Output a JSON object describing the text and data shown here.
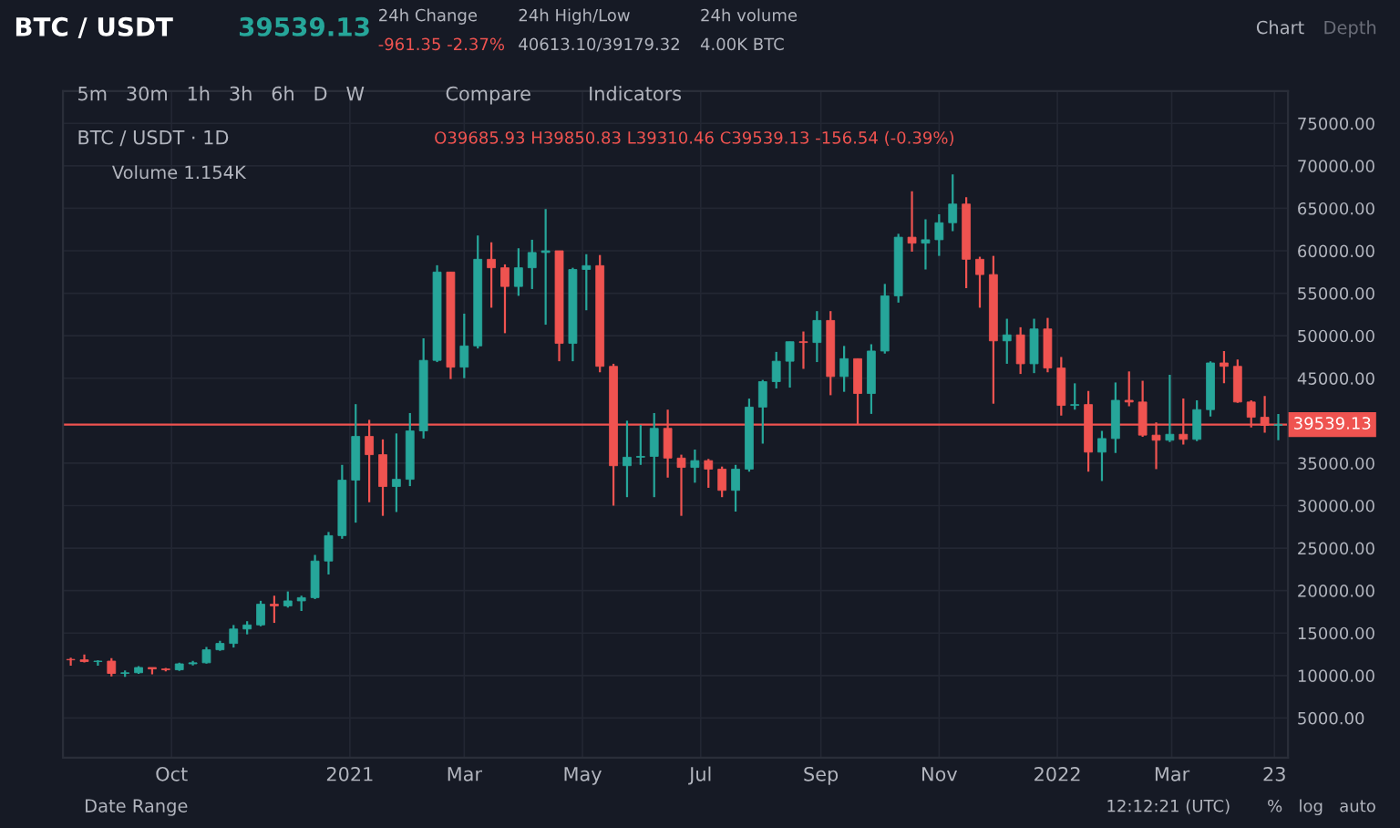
{
  "chart_data": {
    "type": "candlestick",
    "title": "BTC / USDT",
    "subtitle": "39539.13",
    "annotations": [
      "24h Change",
      "-961.35 -2.37%",
      "24h High/Low",
      "40613.10/39179.32",
      "24h volume",
      "4.00K BTC",
      "Chart",
      "Depth",
      "5m   30m   1h   3h   6h   D   W",
      "Compare",
      "Indicators",
      "BTC / USDT · 1D",
      "O39685.93 H39850.83 L39310.46 C39539.13 -156.54 (-0.39%)",
      "Volume 1.154K",
      "Date Range",
      "12:12:21 (UTC)",
      "%   log   auto"
    ],
    "x": [
      "2020-08-10",
      "2020-08-17",
      "2020-08-24",
      "2020-08-31",
      "2020-09-07",
      "2020-09-14",
      "2020-09-21",
      "2020-09-28",
      "2020-10-05",
      "2020-10-12",
      "2020-10-19",
      "2020-10-26",
      "2020-11-02",
      "2020-11-09",
      "2020-11-16",
      "2020-11-23",
      "2020-11-30",
      "2020-12-07",
      "2020-12-14",
      "2020-12-21",
      "2020-12-28",
      "2021-01-04",
      "2021-01-11",
      "2021-01-18",
      "2021-01-25",
      "2021-02-01",
      "2021-02-08",
      "2021-02-15",
      "2021-02-22",
      "2021-03-01",
      "2021-03-08",
      "2021-03-15",
      "2021-03-22",
      "2021-03-29",
      "2021-04-05",
      "2021-04-12",
      "2021-04-19",
      "2021-04-26",
      "2021-05-03",
      "2021-05-10",
      "2021-05-17",
      "2021-05-24",
      "2021-05-31",
      "2021-06-07",
      "2021-06-14",
      "2021-06-21",
      "2021-06-28",
      "2021-07-05",
      "2021-07-12",
      "2021-07-19",
      "2021-07-26",
      "2021-08-02",
      "2021-08-09",
      "2021-08-16",
      "2021-08-23",
      "2021-08-30",
      "2021-09-06",
      "2021-09-13",
      "2021-09-20",
      "2021-09-27",
      "2021-10-04",
      "2021-10-11",
      "2021-10-18",
      "2021-10-25",
      "2021-11-01",
      "2021-11-08",
      "2021-11-15",
      "2021-11-22",
      "2021-11-29",
      "2021-12-06",
      "2021-12-13",
      "2021-12-20",
      "2021-12-27",
      "2022-01-03",
      "2022-01-10",
      "2022-01-17",
      "2022-01-24",
      "2022-01-31",
      "2022-02-07",
      "2022-02-14",
      "2022-02-21",
      "2022-02-28",
      "2022-03-07",
      "2022-03-14",
      "2022-03-21",
      "2022-03-28",
      "2022-04-04",
      "2022-04-11",
      "2022-04-18",
      "2022-04-25"
    ],
    "ohlc": [
      [
        11900,
        12100,
        11150,
        11850
      ],
      [
        11850,
        12470,
        11550,
        11650
      ],
      [
        11650,
        11800,
        11150,
        11700
      ],
      [
        11700,
        12050,
        9900,
        10250
      ],
      [
        10250,
        10600,
        9850,
        10330
      ],
      [
        10330,
        11100,
        10200,
        10950
      ],
      [
        10950,
        10950,
        10140,
        10780
      ],
      [
        10780,
        10900,
        10500,
        10680
      ],
      [
        10680,
        11500,
        10550,
        11380
      ],
      [
        11380,
        11720,
        11200,
        11500
      ],
      [
        11500,
        13350,
        11400,
        13030
      ],
      [
        13030,
        14100,
        12900,
        13780
      ],
      [
        13780,
        15950,
        13300,
        15480
      ],
      [
        15480,
        16400,
        14850,
        15960
      ],
      [
        15960,
        18800,
        15800,
        18400
      ],
      [
        18400,
        19400,
        16200,
        18200
      ],
      [
        18200,
        19900,
        18000,
        18790
      ],
      [
        18790,
        19400,
        17600,
        19170
      ],
      [
        19170,
        24200,
        19000,
        23480
      ],
      [
        23480,
        26900,
        21900,
        26470
      ],
      [
        26470,
        34800,
        26100,
        33000
      ],
      [
        33000,
        41950,
        28000,
        38150
      ],
      [
        38150,
        40100,
        30400,
        36000
      ],
      [
        36000,
        37800,
        28800,
        32250
      ],
      [
        32250,
        38500,
        29250,
        33100
      ],
      [
        33100,
        40900,
        32300,
        38800
      ],
      [
        38800,
        49700,
        37900,
        47100
      ],
      [
        47100,
        58300,
        46900,
        57500
      ],
      [
        57500,
        57500,
        44900,
        46300
      ],
      [
        46300,
        52600,
        45000,
        48800
      ],
      [
        48800,
        61800,
        48500,
        59000
      ],
      [
        59000,
        61000,
        53300,
        58000
      ],
      [
        58000,
        58400,
        50300,
        55800
      ],
      [
        55800,
        60300,
        54700,
        58000
      ],
      [
        58000,
        61300,
        55500,
        59800
      ],
      [
        59800,
        64900,
        51300,
        60000
      ],
      [
        60000,
        60000,
        47000,
        49100
      ],
      [
        49100,
        58000,
        47000,
        57800
      ],
      [
        57800,
        59600,
        53000,
        58250
      ],
      [
        58250,
        59500,
        45700,
        46400
      ],
      [
        46400,
        46700,
        30000,
        34700
      ],
      [
        34700,
        40000,
        31000,
        35700
      ],
      [
        35700,
        39500,
        34800,
        35800
      ],
      [
        35800,
        40900,
        31000,
        39100
      ],
      [
        39100,
        41300,
        33300,
        35600
      ],
      [
        35600,
        36000,
        28800,
        34500
      ],
      [
        34500,
        36600,
        32700,
        35300
      ],
      [
        35300,
        35500,
        32100,
        34300
      ],
      [
        34300,
        34600,
        31000,
        31800
      ],
      [
        31800,
        34800,
        29300,
        34300
      ],
      [
        34300,
        42600,
        34000,
        41600
      ],
      [
        41600,
        44800,
        37300,
        44600
      ],
      [
        44600,
        48100,
        43800,
        47000
      ],
      [
        47000,
        49300,
        43900,
        49300
      ],
      [
        49300,
        50500,
        46100,
        49200
      ],
      [
        49200,
        52900,
        46900,
        51800
      ],
      [
        51800,
        52900,
        43000,
        45200
      ],
      [
        45200,
        48800,
        43400,
        47300
      ],
      [
        47300,
        47300,
        39600,
        43200
      ],
      [
        43200,
        49000,
        40800,
        48200
      ],
      [
        48200,
        56100,
        47900,
        54700
      ],
      [
        54700,
        62000,
        53900,
        61600
      ],
      [
        61600,
        67000,
        59900,
        60900
      ],
      [
        60900,
        63700,
        57800,
        61300
      ],
      [
        61300,
        64300,
        59400,
        63300
      ],
      [
        63300,
        69000,
        62300,
        65500
      ],
      [
        65500,
        66300,
        55600,
        59000
      ],
      [
        59000,
        59300,
        53300,
        57200
      ],
      [
        57200,
        59400,
        42000,
        49400
      ],
      [
        49400,
        52000,
        46700,
        50100
      ],
      [
        50100,
        51000,
        45500,
        46700
      ],
      [
        46700,
        52000,
        45600,
        50800
      ],
      [
        50800,
        52100,
        45700,
        46200
      ],
      [
        46200,
        47500,
        40600,
        41800
      ],
      [
        41800,
        44400,
        41300,
        41900
      ],
      [
        41900,
        43500,
        34000,
        36300
      ],
      [
        36300,
        38800,
        32900,
        37900
      ],
      [
        37900,
        44500,
        36200,
        42400
      ],
      [
        42400,
        45800,
        41700,
        42200
      ],
      [
        42200,
        44700,
        38100,
        38300
      ],
      [
        38300,
        39800,
        34300,
        37700
      ],
      [
        37700,
        45400,
        37500,
        38400
      ],
      [
        38400,
        42600,
        37200,
        37800
      ],
      [
        37800,
        42400,
        37600,
        41300
      ],
      [
        41300,
        47000,
        40500,
        46800
      ],
      [
        46800,
        48200,
        44400,
        46400
      ],
      [
        46400,
        47200,
        42100,
        42200
      ],
      [
        42200,
        42400,
        39200,
        40400
      ],
      [
        40400,
        42900,
        38600,
        39450
      ],
      [
        39450,
        40800,
        37700,
        39539.13
      ]
    ],
    "colors": [
      "#ef5350",
      "#ef5350",
      "#26a69a",
      "#ef5350",
      "#26a69a",
      "#26a69a",
      "#ef5350",
      "#ef5350",
      "#26a69a",
      "#26a69a",
      "#26a69a",
      "#26a69a",
      "#26a69a",
      "#26a69a",
      "#26a69a",
      "#ef5350",
      "#26a69a",
      "#26a69a",
      "#26a69a",
      "#26a69a",
      "#26a69a",
      "#26a69a",
      "#ef5350",
      "#ef5350",
      "#26a69a",
      "#26a69a",
      "#26a69a",
      "#26a69a",
      "#ef5350",
      "#26a69a",
      "#26a69a",
      "#ef5350",
      "#ef5350",
      "#26a69a",
      "#26a69a",
      "#26a69a",
      "#ef5350",
      "#26a69a",
      "#26a69a",
      "#ef5350",
      "#ef5350",
      "#26a69a",
      "#26a69a",
      "#26a69a",
      "#ef5350",
      "#ef5350",
      "#26a69a",
      "#ef5350",
      "#ef5350",
      "#26a69a",
      "#26a69a",
      "#26a69a",
      "#26a69a",
      "#26a69a",
      "#ef5350",
      "#26a69a",
      "#ef5350",
      "#26a69a",
      "#ef5350",
      "#26a69a",
      "#26a69a",
      "#26a69a",
      "#ef5350",
      "#26a69a",
      "#26a69a",
      "#26a69a",
      "#ef5350",
      "#ef5350",
      "#ef5350",
      "#26a69a",
      "#ef5350",
      "#26a69a",
      "#ef5350",
      "#ef5350",
      "#26a69a",
      "#ef5350",
      "#26a69a",
      "#26a69a",
      "#ef5350",
      "#ef5350",
      "#ef5350",
      "#26a69a",
      "#ef5350",
      "#26a69a",
      "#26a69a",
      "#ef5350",
      "#ef5350",
      "#ef5350",
      "#ef5350",
      "#26a69a"
    ],
    "xlim": [
      "2020-08-06",
      "2022-04-30"
    ],
    "xticks": [
      {
        "value": "2020-10-01",
        "label": "Oct"
      },
      {
        "value": "2021-01-01",
        "label": "2021"
      },
      {
        "value": "2021-03-01",
        "label": "Mar"
      },
      {
        "value": "2021-05-01",
        "label": "May"
      },
      {
        "value": "2021-07-01",
        "label": "Jul"
      },
      {
        "value": "2021-09-01",
        "label": "Sep"
      },
      {
        "value": "2021-11-01",
        "label": "Nov"
      },
      {
        "value": "2022-01-01",
        "label": "2022"
      },
      {
        "value": "2022-03-01",
        "label": "Mar"
      },
      {
        "value": "2022-04-23",
        "label": "23"
      }
    ],
    "ylim": [
      340,
      78800
    ],
    "yticks": [
      {
        "value": 5000,
        "label": "5000.00"
      },
      {
        "value": 10000,
        "label": "10000.00"
      },
      {
        "value": 15000,
        "label": "15000.00"
      },
      {
        "value": 20000,
        "label": "20000.00"
      },
      {
        "value": 25000,
        "label": "25000.00"
      },
      {
        "value": 30000,
        "label": "30000.00"
      },
      {
        "value": 35000,
        "label": "35000.00"
      },
      {
        "value": 45000,
        "label": "45000.00"
      },
      {
        "value": 50000,
        "label": "50000.00"
      },
      {
        "value": 55000,
        "label": "55000.00"
      },
      {
        "value": 60000,
        "label": "60000.00"
      },
      {
        "value": 65000,
        "label": "65000.00"
      },
      {
        "value": 70000,
        "label": "70000.00"
      },
      {
        "value": 75000,
        "label": "75000.00"
      }
    ],
    "ref_lines": [
      {
        "axis": "y",
        "value": 39539.13,
        "label": "39539.13",
        "color": "#ef5350"
      }
    ],
    "grid": true
  }
}
